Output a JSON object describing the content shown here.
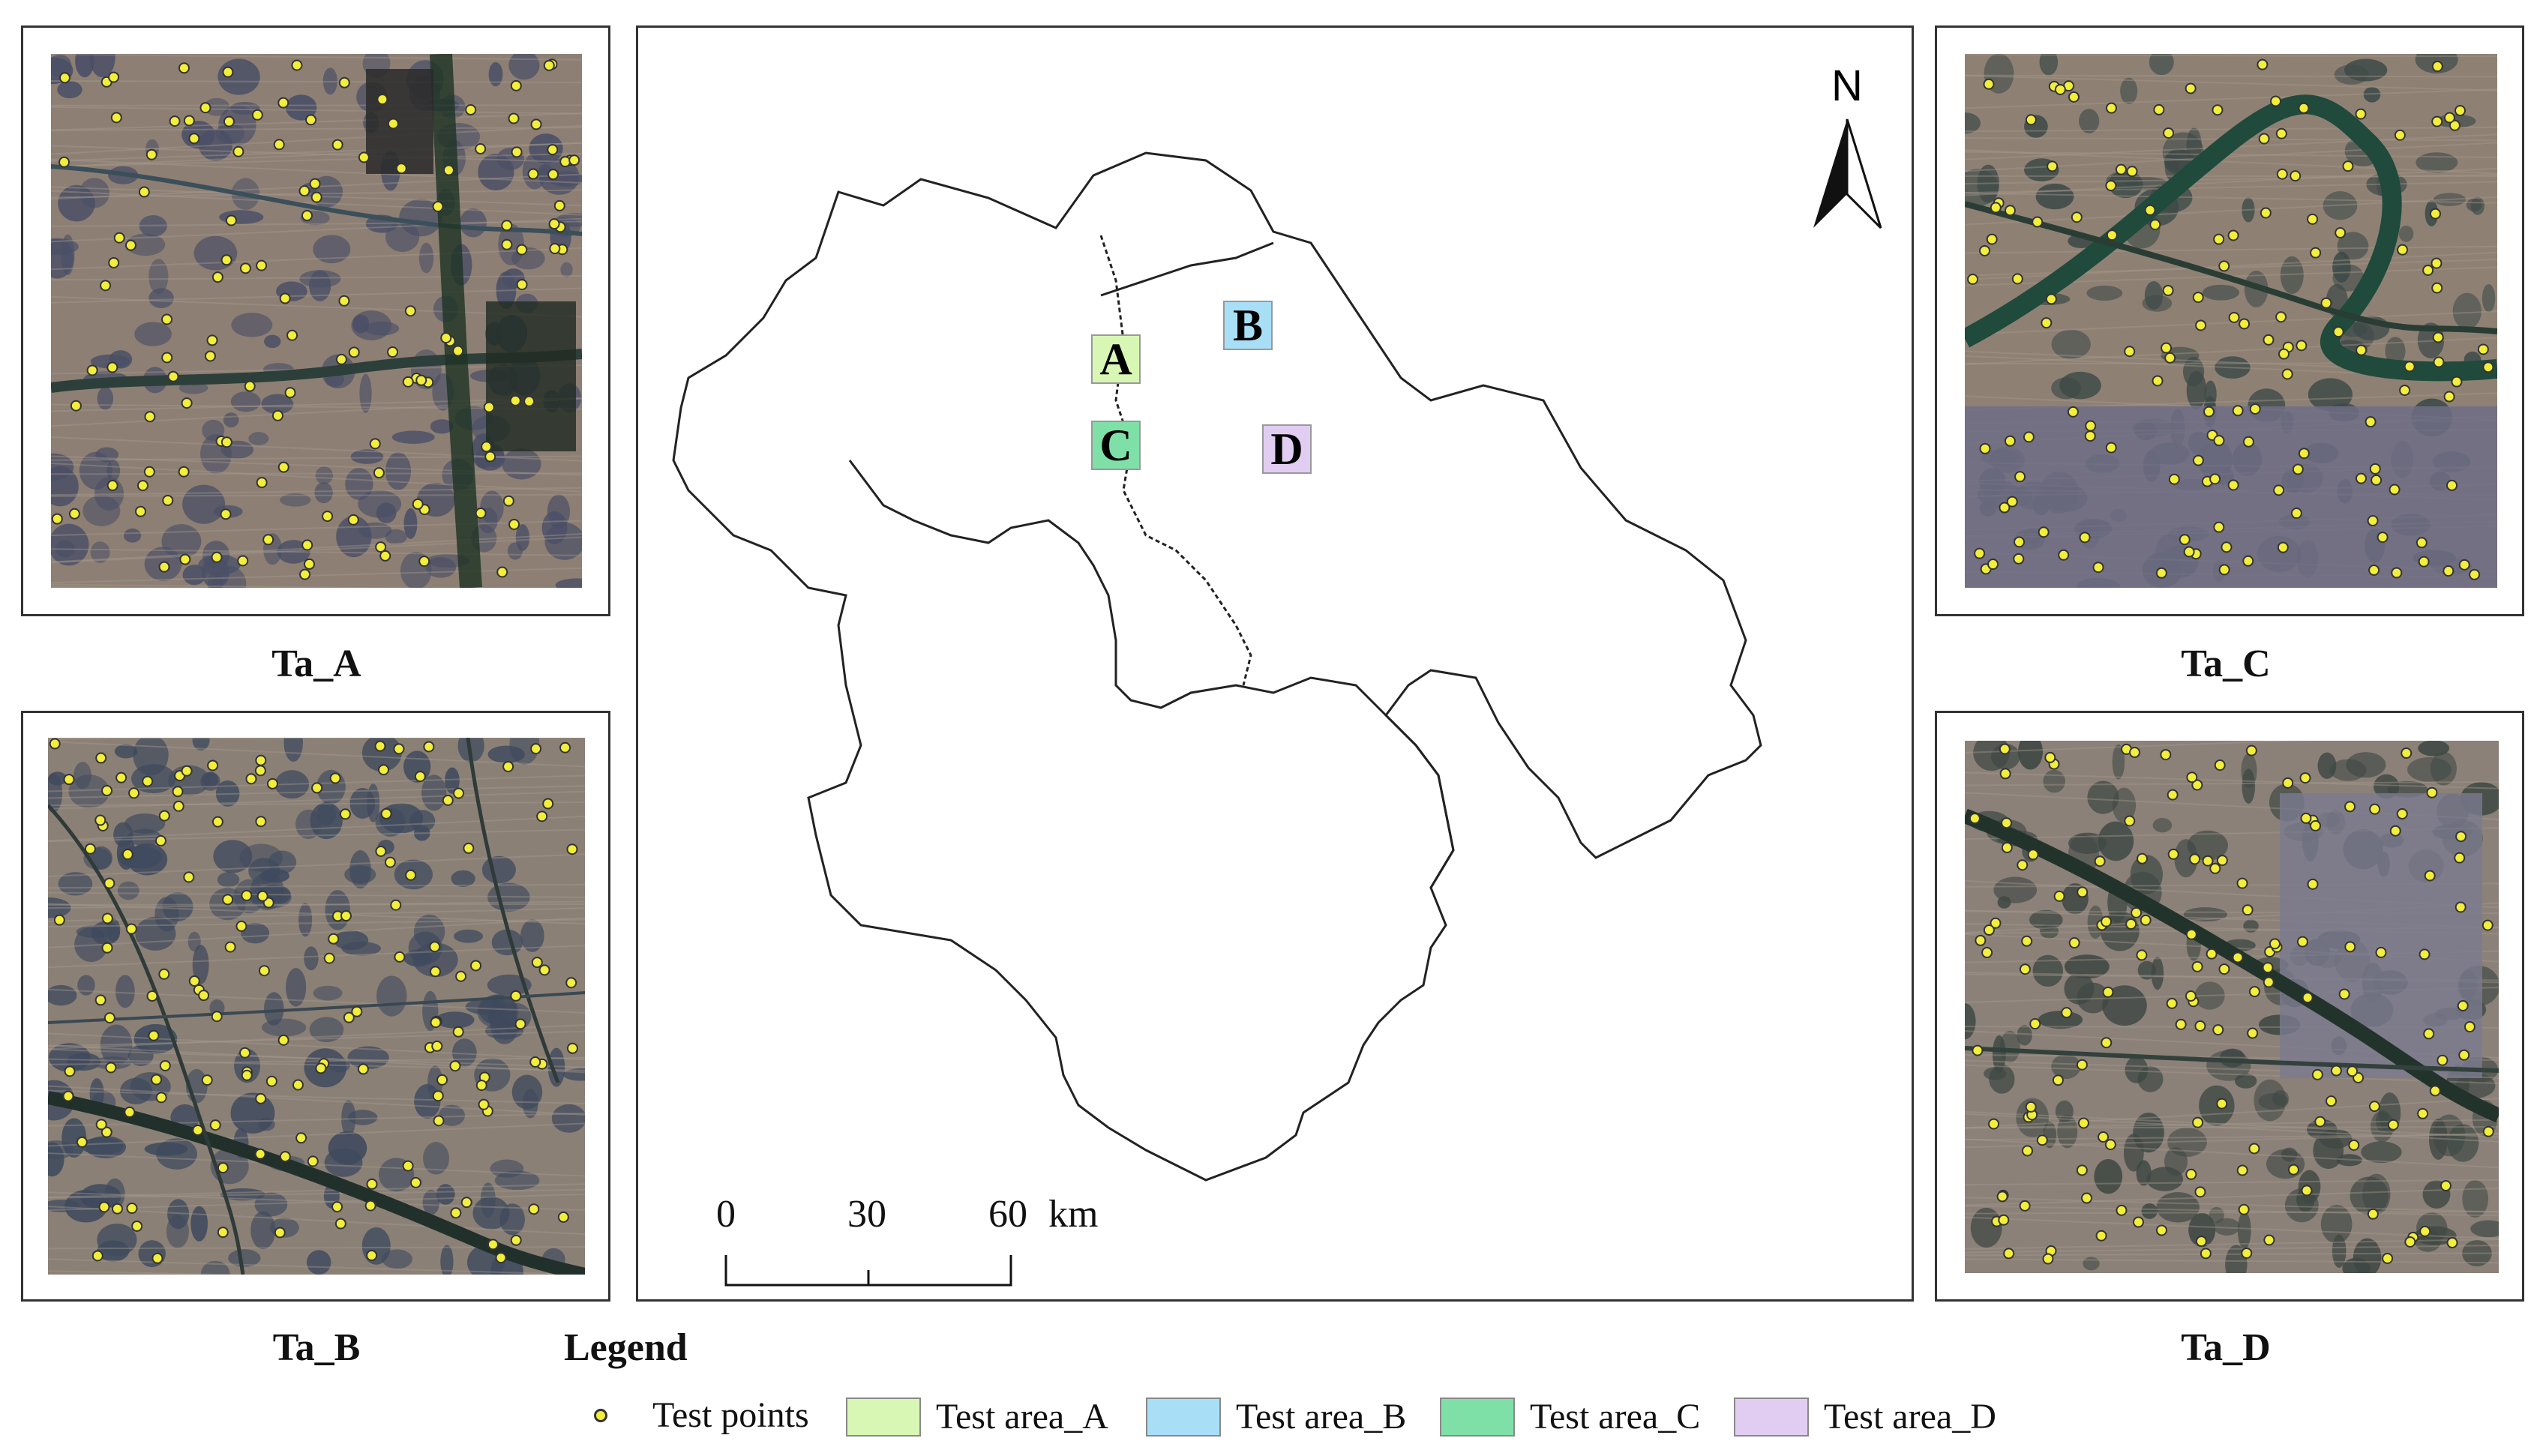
{
  "panels": {
    "a": {
      "label": "Ta_A"
    },
    "b": {
      "label": "Ta_B"
    },
    "c": {
      "label": "Ta_C"
    },
    "d": {
      "label": "Ta_D"
    }
  },
  "map": {
    "north_label": "N",
    "areas": [
      {
        "letter": "A",
        "color": "#d9f7b4"
      },
      {
        "letter": "B",
        "color": "#a8dff7"
      },
      {
        "letter": "C",
        "color": "#7fe0a7"
      },
      {
        "letter": "D",
        "color": "#e1cdf2"
      }
    ],
    "scale": {
      "ticks": [
        "0",
        "30",
        "60"
      ],
      "unit": "km"
    }
  },
  "legend": {
    "title": "Legend",
    "points_label": "Test points",
    "point_color": "#f2ee3a",
    "items": [
      {
        "label": "Test area_A",
        "color": "#d9f7b4"
      },
      {
        "label": "Test area_B",
        "color": "#a8dff7"
      },
      {
        "label": "Test area_C",
        "color": "#7fe0a7"
      },
      {
        "label": "Test area_D",
        "color": "#e1cdf2"
      }
    ]
  }
}
